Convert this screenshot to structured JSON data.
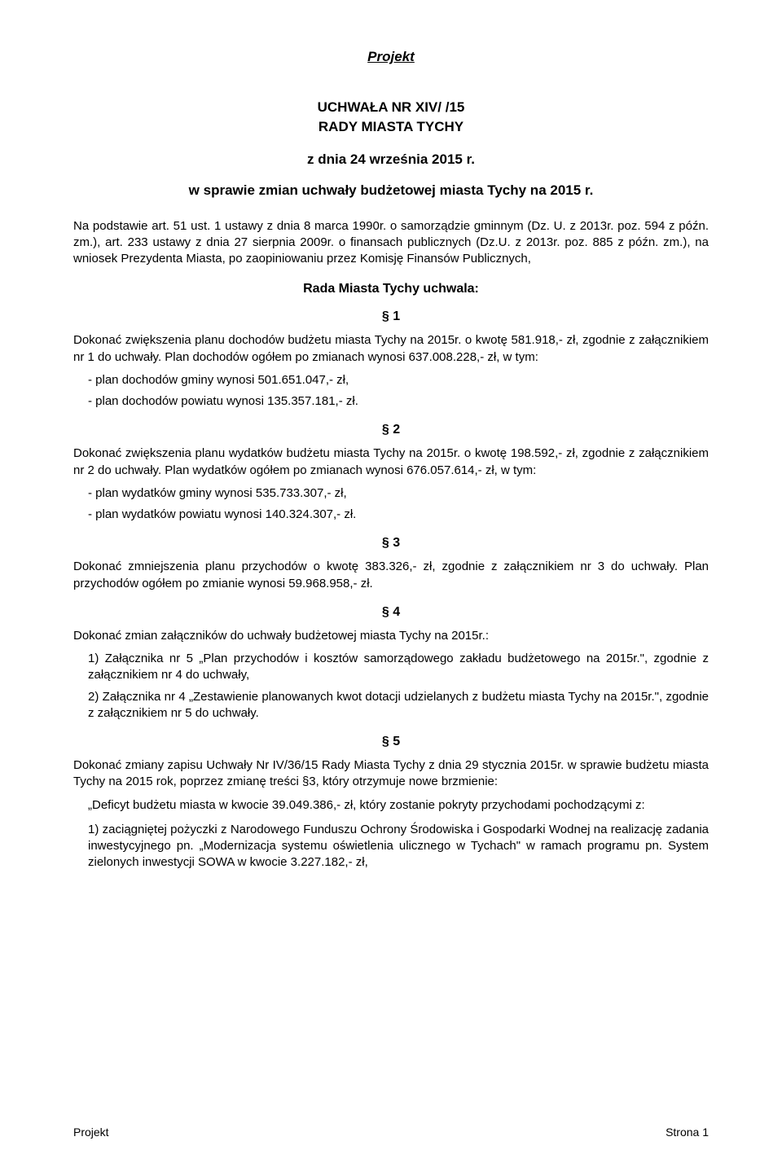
{
  "header": "Projekt",
  "title_line1": "UCHWAŁA NR XIV/     /15",
  "title_line2": "RADY MIASTA TYCHY",
  "date_line": "z dnia 24 września 2015 r.",
  "subject": "w sprawie zmian uchwały budżetowej miasta Tychy na 2015 r.",
  "basis": "Na podstawie art. 51 ust. 1 ustawy z dnia 8 marca 1990r. o samorządzie gminnym (Dz. U. z 2013r. poz. 594 z późn. zm.), art. 233 ustawy z dnia 27 sierpnia 2009r. o finansach publicznych (Dz.U. z 2013r. poz. 885 z późn. zm.), na wniosek Prezydenta Miasta, po zaopiniowaniu przez Komisję Finansów Publicznych,",
  "council": "Rada Miasta Tychy uchwala:",
  "s1": {
    "num": "§ 1",
    "p1": "Dokonać zwiększenia planu dochodów budżetu miasta Tychy na 2015r. o kwotę 581.918,- zł, zgodnie z załącznikiem nr 1 do uchwały. Plan dochodów ogółem po zmianach wynosi 637.008.228,- zł, w tym:",
    "i1": "- plan dochodów gminy wynosi 501.651.047,- zł,",
    "i2": "- plan dochodów powiatu wynosi 135.357.181,- zł."
  },
  "s2": {
    "num": "§ 2",
    "p1": "Dokonać zwiększenia planu wydatków budżetu miasta Tychy na 2015r. o kwotę 198.592,- zł, zgodnie z załącznikiem nr 2 do uchwały. Plan wydatków ogółem po zmianach wynosi 676.057.614,- zł, w tym:",
    "i1": "- plan wydatków gminy wynosi 535.733.307,- zł,",
    "i2": "- plan wydatków powiatu wynosi 140.324.307,- zł."
  },
  "s3": {
    "num": "§ 3",
    "p1": "Dokonać zmniejszenia planu przychodów o kwotę 383.326,- zł, zgodnie z załącznikiem nr 3 do uchwały. Plan przychodów ogółem po zmianie wynosi 59.968.958,- zł."
  },
  "s4": {
    "num": "§ 4",
    "p1": "Dokonać zmian załączników do uchwały budżetowej miasta Tychy na 2015r.:",
    "n1": "1) Załącznika nr 5 „Plan przychodów i kosztów samorządowego zakładu budżetowego na 2015r.\", zgodnie z załącznikiem nr 4 do uchwały,",
    "n2": "2) Załącznika nr 4 „Zestawienie planowanych kwot dotacji udzielanych z budżetu miasta Tychy na 2015r.\", zgodnie z załącznikiem nr 5 do uchwały."
  },
  "s5": {
    "num": "§ 5",
    "p1": "Dokonać zmiany zapisu Uchwały Nr IV/36/15 Rady Miasta Tychy z dnia 29 stycznia 2015r. w sprawie budżetu miasta Tychy na 2015 rok, poprzez zmianę treści §3, który otrzymuje nowe brzmienie:",
    "q1": "„Deficyt budżetu miasta w kwocie 39.049.386,- zł, który zostanie pokryty przychodami pochodzącymi z:",
    "q2": "1) zaciągniętej pożyczki z Narodowego Funduszu Ochrony Środowiska i Gospodarki Wodnej na realizację zadania inwestycyjnego pn. „Modernizacja systemu oświetlenia ulicznego w Tychach\" w ramach programu pn. System zielonych inwestycji SOWA w kwocie 3.227.182,- zł,"
  },
  "footer": {
    "left": "Projekt",
    "right": "Strona 1"
  }
}
